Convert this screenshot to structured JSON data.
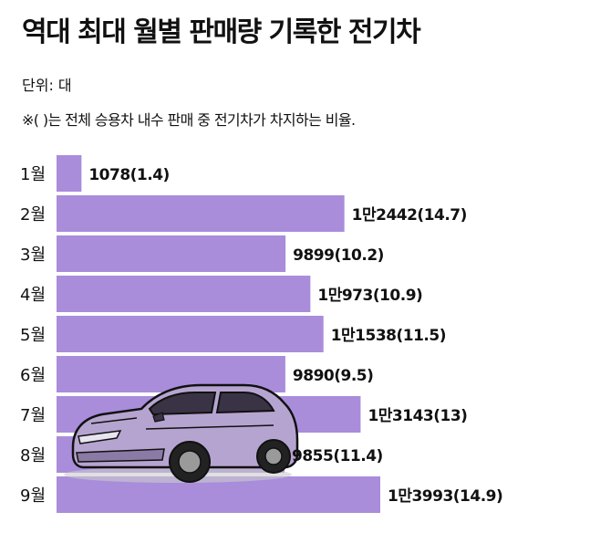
{
  "header": {
    "title": "역대 최대 월별 판매량 기록한 전기차",
    "unit": "단위: 대",
    "note": "※( )는 전체 승용차 내수 판매 중 전기차가 차지하는 비율."
  },
  "colors": {
    "bar": "#a98ddb",
    "bar_border": "#2a2040",
    "text": "#111111"
  },
  "illustration": {
    "name": "electric-car",
    "body_color": "#b6a4d0"
  },
  "chart_data": {
    "type": "bar",
    "orientation": "horizontal",
    "categories": [
      "1월",
      "2월",
      "3월",
      "4월",
      "5월",
      "6월",
      "7월",
      "8월",
      "9월"
    ],
    "values": [
      1078,
      12442,
      9899,
      10973,
      11538,
      9890,
      13143,
      9855,
      13993
    ],
    "share_percent": [
      1.4,
      14.7,
      10.2,
      10.9,
      11.5,
      9.5,
      13,
      11.4,
      14.9
    ],
    "data_labels": [
      "1078(1.4)",
      "1만2442(14.7)",
      "9899(10.2)",
      "1만973(10.9)",
      "1만1538(11.5)",
      "9890(9.5)",
      "1만3143(13)",
      "9855(11.4)",
      "1만3993(14.9)"
    ],
    "xlim": [
      0,
      15000
    ],
    "grid": false,
    "legend": false
  }
}
